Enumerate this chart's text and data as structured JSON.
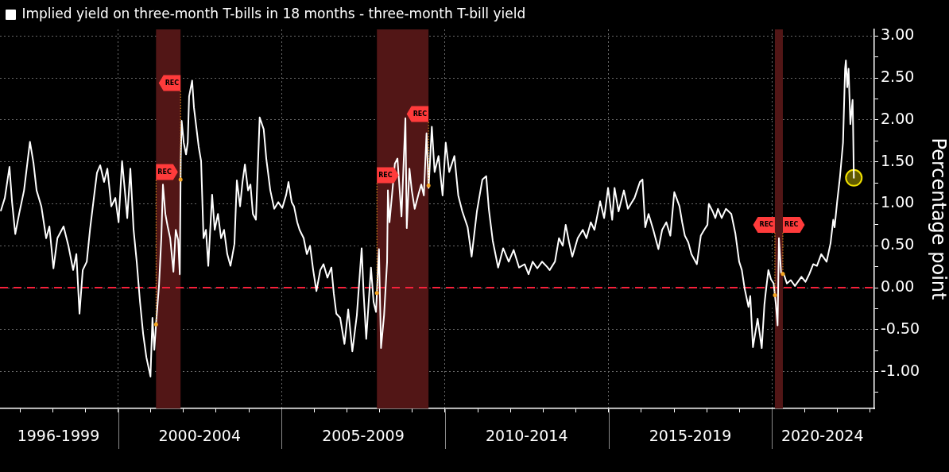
{
  "chart_data": {
    "type": "line",
    "ylabel": "Percentage point",
    "legend": "top left",
    "grid": true,
    "xlim": [
      "1996-05-23",
      "2023-02-15"
    ],
    "xticks": [
      {
        "value": "1997",
        "label": null
      },
      {
        "value": "1998",
        "label": null
      },
      {
        "value": "1998-03-06",
        "label": "1996-1999"
      },
      {
        "value": "1999",
        "label": null
      },
      {
        "value": "2000",
        "label": null
      },
      {
        "value": "2001",
        "label": null
      },
      {
        "value": "2002",
        "label": null
      },
      {
        "value": "2002-07-01",
        "label": "2000-2004"
      },
      {
        "value": "2003",
        "label": null
      },
      {
        "value": "2004",
        "label": null
      },
      {
        "value": "2005",
        "label": null
      },
      {
        "value": "2006",
        "label": null
      },
      {
        "value": "2007",
        "label": null
      },
      {
        "value": "2007-07-01",
        "label": "2005-2009"
      },
      {
        "value": "2008",
        "label": null
      },
      {
        "value": "2009",
        "label": null
      },
      {
        "value": "2010",
        "label": null
      },
      {
        "value": "2011",
        "label": null
      },
      {
        "value": "2012",
        "label": null
      },
      {
        "value": "2012-07-01",
        "label": "2010-2014"
      },
      {
        "value": "2013",
        "label": null
      },
      {
        "value": "2014",
        "label": null
      },
      {
        "value": "2015",
        "label": null
      },
      {
        "value": "2016",
        "label": null
      },
      {
        "value": "2017",
        "label": null
      },
      {
        "value": "2017-07-01",
        "label": "2015-2019"
      },
      {
        "value": "2018",
        "label": null
      },
      {
        "value": "2019",
        "label": null
      },
      {
        "value": "2020",
        "label": null
      },
      {
        "value": "2021",
        "label": null
      },
      {
        "value": "2021-07-16",
        "label": "2020-2024"
      },
      {
        "value": "2022",
        "label": null
      },
      {
        "value": "2023",
        "label": null
      }
    ],
    "ylim": [
      -1.44,
      3.08
    ],
    "yticks": [
      {
        "value": 3,
        "label": "3.00"
      },
      {
        "value": 2.75,
        "label": null
      },
      {
        "value": 2.5,
        "label": "2.50"
      },
      {
        "value": 2.25,
        "label": null
      },
      {
        "value": 2,
        "label": "2.00"
      },
      {
        "value": 1.75,
        "label": null
      },
      {
        "value": 1.5,
        "label": "1.50"
      },
      {
        "value": 1.25,
        "label": null
      },
      {
        "value": 1,
        "label": "1.00"
      },
      {
        "value": 0.75,
        "label": null
      },
      {
        "value": 0.5,
        "label": "0.50"
      },
      {
        "value": 0.25,
        "label": null
      },
      {
        "value": 0,
        "label": "0.00"
      },
      {
        "value": -0.25,
        "label": null
      },
      {
        "value": -0.5,
        "label": "-0.50"
      },
      {
        "value": -0.75,
        "label": null
      },
      {
        "value": -1,
        "label": "-1.00"
      },
      {
        "value": -1.25,
        "label": null
      }
    ],
    "ref_lines": [
      {
        "axis": "y",
        "value": 0,
        "color": "#f5213b",
        "line_style": "dashed"
      }
    ],
    "bands": [
      {
        "axis": "x",
        "from": "2001-03-01",
        "to": "2001-11-30",
        "color": "#521616"
      },
      {
        "axis": "x",
        "from": "2007-12-01",
        "to": "2009-06-30",
        "color": "#521616"
      },
      {
        "axis": "x",
        "from": "2020-02-01",
        "to": "2020-04-30",
        "color": "#521616"
      }
    ],
    "annotations": [
      {
        "text": "REC",
        "x": "2001-03-01",
        "y": 1.38
      },
      {
        "text": "REC",
        "x": "2001-11-30",
        "y": 2.44
      },
      {
        "text": "REC",
        "x": "2007-12-01",
        "y": 1.34
      },
      {
        "text": "REC",
        "x": "2009-06-30",
        "y": 2.07
      },
      {
        "text": "REC",
        "x": "2020-02-01",
        "y": 0.75
      },
      {
        "text": "REC",
        "x": "2020-04-30",
        "y": 0.75
      }
    ],
    "series": [
      {
        "name": "Implied yield on three-month T-bills in 18 months - three-month T-bill yield",
        "color": "#ffffff",
        "x": [
          "1996-06-02",
          "1996-07-16",
          "1996-09-06",
          "1996-10-05",
          "1996-11-10",
          "1996-12-23",
          "1997-02-16",
          "1997-04-23",
          "1997-06-01",
          "1997-07-06",
          "1997-08-28",
          "1997-10-21",
          "1997-11-26",
          "1998-01-10",
          "1998-02-23",
          "1998-05-03",
          "1998-06-26",
          "1998-08-18",
          "1998-09-23",
          "1998-10-28",
          "1998-12-03",
          "1999-01-17",
          "1999-02-22",
          "1999-04-06",
          "1999-05-11",
          "1999-06-16",
          "1999-07-29",
          "1999-09-04",
          "1999-10-18",
          "1999-12-02",
          "2000-01-07",
          "2000-02-15",
          "2000-03-17",
          "2000-04-13",
          "2000-05-18",
          "2000-06-23",
          "2000-07-28",
          "2000-09-03",
          "2000-10-08",
          "2000-11-13",
          "2000-12-29",
          "2001-01-20",
          "2001-02-10",
          "2001-03-04",
          "2001-04-03",
          "2001-04-29",
          "2001-05-17",
          "2001-06-13",
          "2001-07-09",
          "2001-08-06",
          "2001-09-11",
          "2001-10-07",
          "2001-11-03",
          "2001-11-21",
          "2001-12-02",
          "2001-12-12",
          "2002-01-04",
          "2002-01-30",
          "2002-02-18",
          "2002-03-05",
          "2002-04-08",
          "2002-04-28",
          "2002-05-24",
          "2002-06-20",
          "2002-07-17",
          "2002-08-13",
          "2002-09-09",
          "2002-10-05",
          "2002-11-17",
          "2002-12-16",
          "2003-01-21",
          "2003-02-25",
          "2003-03-30",
          "2003-05-05",
          "2003-06-10",
          "2003-07-24",
          "2003-08-20",
          "2003-09-25",
          "2003-10-22",
          "2003-11-18",
          "2003-12-23",
          "2004-01-19",
          "2004-02-15",
          "2004-03-20",
          "2004-05-01",
          "2004-06-15",
          "2004-07-14",
          "2004-08-28",
          "2004-10-11",
          "2004-11-25",
          "2005-01-09",
          "2005-02-22",
          "2005-03-19",
          "2005-04-24",
          "2005-05-20",
          "2005-06-25",
          "2005-07-21",
          "2005-09-05",
          "2005-10-10",
          "2005-11-15",
          "2005-12-20",
          "2006-01-25",
          "2006-03-09",
          "2006-04-14",
          "2006-05-28",
          "2006-07-11",
          "2006-08-07",
          "2006-09-04",
          "2006-10-17",
          "2006-12-04",
          "2007-01-15",
          "2007-03-02",
          "2007-04-21",
          "2007-06-14",
          "2007-07-06",
          "2007-08-04",
          "2007-09-26",
          "2007-10-25",
          "2007-11-21",
          "2007-12-24",
          "2008-01-16",
          "2008-02-19",
          "2008-03-24",
          "2008-04-02",
          "2008-04-20",
          "2008-06-19",
          "2008-07-18",
          "2008-09-01",
          "2008-10-15",
          "2008-10-30",
          "2008-11-29",
          "2008-12-25",
          "2009-01-27",
          "2009-03-14",
          "2009-04-10",
          "2009-05-09",
          "2009-06-08",
          "2009-07-01",
          "2009-08-06",
          "2009-09-06",
          "2009-10-20",
          "2009-12-04",
          "2010-01-08",
          "2010-02-16",
          "2010-04-15",
          "2010-05-28",
          "2010-07-12",
          "2010-09-10",
          "2010-10-24",
          "2010-12-22",
          "2011-02-21",
          "2011-04-05",
          "2011-05-04",
          "2011-06-17",
          "2011-08-16",
          "2011-10-11",
          "2011-12-12",
          "2012-02-05",
          "2012-04-06",
          "2012-06-07",
          "2012-07-21",
          "2012-09-05",
          "2012-10-27",
          "2012-12-19",
          "2013-02-12",
          "2013-03-14",
          "2013-05-12",
          "2013-06-26",
          "2013-08-07",
          "2013-09-09",
          "2013-10-17",
          "2013-11-22",
          "2014-01-21",
          "2014-03-19",
          "2014-04-29",
          "2014-06-16",
          "2014-07-27",
          "2014-09-28",
          "2014-11-12",
          "2014-12-26",
          "2015-02-10",
          "2015-03-08",
          "2015-04-22",
          "2015-06-21",
          "2015-08-04",
          "2015-10-17",
          "2015-12-16",
          "2016-01-14",
          "2016-02-14",
          "2016-03-22",
          "2016-05-14",
          "2016-07-10",
          "2016-08-21",
          "2016-10-07",
          "2016-11-21",
          "2017-01-04",
          "2017-01-28",
          "2017-03-03",
          "2017-04-02",
          "2017-05-02",
          "2017-06-09",
          "2017-07-14",
          "2017-09-13",
          "2017-10-27",
          "2017-12-04",
          "2018-01-09",
          "2018-01-24",
          "2018-03-08",
          "2018-04-07",
          "2018-05-06",
          "2018-06-17",
          "2018-08-03",
          "2018-10-02",
          "2018-11-16",
          "2018-12-29",
          "2019-01-28",
          "2019-02-28",
          "2019-04-12",
          "2019-05-02",
          "2019-06-01",
          "2019-07-23",
          "2019-09-07",
          "2019-10-07",
          "2019-10-20",
          "2019-11-20",
          "2019-12-19",
          "2020-01-18",
          "2020-02-12",
          "2020-03-02",
          "2020-03-17",
          "2020-04-10",
          "2020-05-15",
          "2020-06-14",
          "2020-07-28",
          "2020-09-12",
          "2020-11-24",
          "2021-01-08",
          "2021-02-19",
          "2021-04-05",
          "2021-05-16",
          "2021-07-03",
          "2021-09-01",
          "2021-10-15",
          "2021-11-14",
          "2021-11-29",
          "2021-12-28",
          "2022-01-28",
          "2022-03-03",
          "2022-03-26",
          "2022-04-04",
          "2022-04-19",
          "2022-05-04",
          "2022-05-24",
          "2022-06-18",
          "2022-06-23",
          "2022-07-02"
        ],
        "values": [
          0.92,
          1.07,
          1.44,
          1.02,
          0.64,
          0.88,
          1.16,
          1.74,
          1.49,
          1.16,
          0.97,
          0.59,
          0.73,
          0.23,
          0.59,
          0.73,
          0.5,
          0.21,
          0.4,
          -0.31,
          0.21,
          0.31,
          0.69,
          1.07,
          1.37,
          1.46,
          1.26,
          1.42,
          0.97,
          1.07,
          0.78,
          1.51,
          1.16,
          0.83,
          1.42,
          0.69,
          0.31,
          -0.17,
          -0.55,
          -0.83,
          -1.06,
          -0.36,
          -0.74,
          -0.39,
          0.02,
          0.59,
          1.23,
          0.88,
          0.73,
          0.59,
          0.19,
          0.69,
          0.57,
          0.16,
          1.54,
          1.99,
          1.73,
          1.59,
          1.73,
          2.28,
          2.47,
          2.15,
          1.92,
          1.68,
          1.51,
          0.59,
          0.69,
          0.26,
          1.11,
          0.69,
          0.88,
          0.59,
          0.69,
          0.4,
          0.26,
          0.52,
          1.28,
          0.97,
          1.26,
          1.47,
          1.16,
          1.23,
          0.88,
          0.81,
          2.03,
          1.89,
          1.54,
          1.16,
          0.94,
          1.02,
          0.95,
          1.11,
          1.26,
          1.02,
          0.97,
          0.78,
          0.69,
          0.59,
          0.4,
          0.5,
          0.21,
          -0.04,
          0.21,
          0.28,
          0.12,
          0.24,
          -0.07,
          -0.31,
          -0.36,
          -0.67,
          -0.26,
          -0.76,
          -0.33,
          0.47,
          -0.07,
          -0.61,
          0.24,
          -0.17,
          -0.29,
          0.46,
          -0.72,
          -0.33,
          0.31,
          1.16,
          0.78,
          1.48,
          1.54,
          0.85,
          2.02,
          0.71,
          1.42,
          1.16,
          0.94,
          1.13,
          1.23,
          1.1,
          1.84,
          1.19,
          1.92,
          1.38,
          1.57,
          1.1,
          1.73,
          1.38,
          1.57,
          1.1,
          0.91,
          0.72,
          0.37,
          0.91,
          1.29,
          1.33,
          0.94,
          0.56,
          0.24,
          0.47,
          0.31,
          0.45,
          0.24,
          0.28,
          0.16,
          0.31,
          0.23,
          0.31,
          0.25,
          0.21,
          0.31,
          0.59,
          0.5,
          0.75,
          0.54,
          0.37,
          0.59,
          0.69,
          0.59,
          0.78,
          0.69,
          1.03,
          0.83,
          1.19,
          0.81,
          1.19,
          0.91,
          1.16,
          0.94,
          1.07,
          1.26,
          1.29,
          0.72,
          0.88,
          0.69,
          0.46,
          0.69,
          0.78,
          0.62,
          1.14,
          1.07,
          0.97,
          0.78,
          0.62,
          0.54,
          0.4,
          0.28,
          0.62,
          0.69,
          0.75,
          1.0,
          0.91,
          0.83,
          0.94,
          0.83,
          0.94,
          0.88,
          0.65,
          0.31,
          0.21,
          -0.01,
          -0.23,
          -0.1,
          -0.71,
          -0.37,
          -0.72,
          -0.2,
          -0.07,
          0.21,
          0.1,
          0.05,
          -0.2,
          -0.45,
          0.59,
          0.18,
          0.15,
          0.05,
          0.09,
          0.02,
          0.13,
          0.07,
          0.16,
          0.28,
          0.26,
          0.4,
          0.31,
          0.53,
          0.81,
          0.72,
          1.03,
          1.32,
          1.73,
          2.61,
          2.71,
          2.39,
          2.61,
          1.95,
          2.24,
          1.95,
          1.31
        ]
      },
      {
        "type": "scatter",
        "color": "#f0e000",
        "marker": "circle",
        "x": [
          "2022-07-02"
        ],
        "values": [
          1.31
        ]
      }
    ]
  }
}
